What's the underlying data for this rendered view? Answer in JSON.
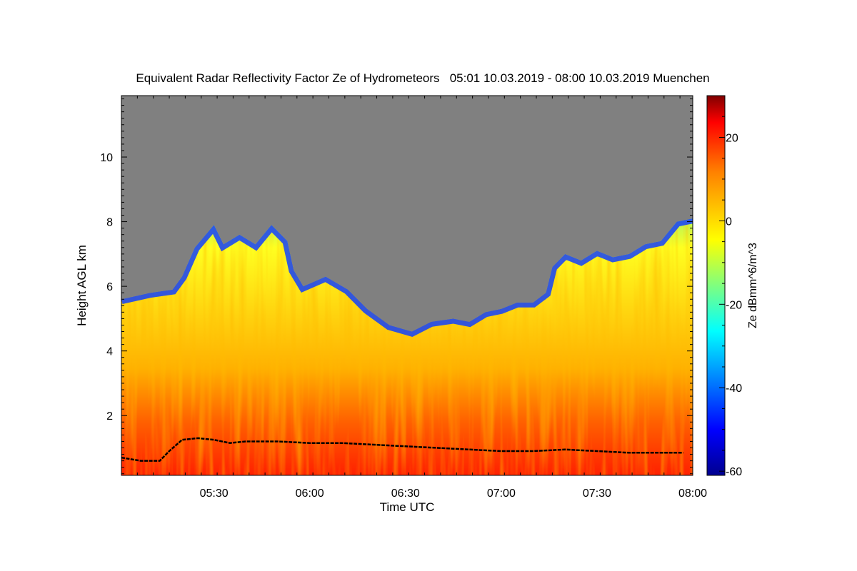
{
  "chart_data": {
    "type": "heatmap",
    "title": "Equivalent Radar Reflectivity Factor Ze of Hydrometeors   05:01 10.03.2019 - 08:00 10.03.2019 Muenchen",
    "xlabel": "Time UTC",
    "ylabel": "Height AGL km",
    "x_range": [
      "05:01",
      "08:00"
    ],
    "x_ticks": [
      "05:30",
      "06:00",
      "06:30",
      "07:00",
      "07:30",
      "08:00"
    ],
    "y_range": [
      0.15,
      11.9
    ],
    "y_ticks": [
      2,
      4,
      6,
      8,
      10
    ],
    "colorbar": {
      "label": "Ze dBmm^6/m^3",
      "range": [
        -61,
        30
      ],
      "ticks": [
        20,
        0,
        -20,
        -40,
        -60
      ],
      "colormap": [
        "#00008f",
        "#0000ff",
        "#00ffff",
        "#ffff00",
        "#ff8000",
        "#ff0000",
        "#800000"
      ]
    },
    "no_signal_color": "#808080",
    "echo_top_km": [
      {
        "t": "05:01",
        "h": 5.6
      },
      {
        "t": "05:10",
        "h": 5.8
      },
      {
        "t": "05:17",
        "h": 5.9
      },
      {
        "t": "05:20",
        "h": 6.3
      },
      {
        "t": "05:24",
        "h": 7.2
      },
      {
        "t": "05:30",
        "h": 7.9
      },
      {
        "t": "05:33",
        "h": 7.3
      },
      {
        "t": "05:38",
        "h": 7.6
      },
      {
        "t": "05:43",
        "h": 7.3
      },
      {
        "t": "05:48",
        "h": 7.9
      },
      {
        "t": "05:53",
        "h": 7.4
      },
      {
        "t": "05:55",
        "h": 6.5
      },
      {
        "t": "05:58",
        "h": 6.0
      },
      {
        "t": "06:05",
        "h": 6.3
      },
      {
        "t": "06:12",
        "h": 5.9
      },
      {
        "t": "06:18",
        "h": 5.3
      },
      {
        "t": "06:25",
        "h": 4.8
      },
      {
        "t": "06:32",
        "h": 4.6
      },
      {
        "t": "06:38",
        "h": 4.9
      },
      {
        "t": "06:45",
        "h": 5.0
      },
      {
        "t": "06:50",
        "h": 4.9
      },
      {
        "t": "06:55",
        "h": 5.2
      },
      {
        "t": "07:00",
        "h": 5.3
      },
      {
        "t": "07:05",
        "h": 5.5
      },
      {
        "t": "07:10",
        "h": 5.5
      },
      {
        "t": "07:14",
        "h": 5.8
      },
      {
        "t": "07:16",
        "h": 6.6
      },
      {
        "t": "07:20",
        "h": 7.0
      },
      {
        "t": "07:25",
        "h": 6.8
      },
      {
        "t": "07:30",
        "h": 7.1
      },
      {
        "t": "07:35",
        "h": 6.9
      },
      {
        "t": "07:40",
        "h": 7.0
      },
      {
        "t": "07:45",
        "h": 7.3
      },
      {
        "t": "07:50",
        "h": 7.4
      },
      {
        "t": "07:55",
        "h": 8.0
      },
      {
        "t": "08:00",
        "h": 8.1
      }
    ],
    "cloud_base_km": [
      {
        "t": "05:01",
        "h": 0.7
      },
      {
        "t": "05:07",
        "h": 0.6
      },
      {
        "t": "05:13",
        "h": 0.6
      },
      {
        "t": "05:16",
        "h": 0.9
      },
      {
        "t": "05:20",
        "h": 1.25
      },
      {
        "t": "05:25",
        "h": 1.3
      },
      {
        "t": "05:30",
        "h": 1.25
      },
      {
        "t": "05:35",
        "h": 1.15
      },
      {
        "t": "05:40",
        "h": 1.2
      },
      {
        "t": "05:50",
        "h": 1.2
      },
      {
        "t": "06:00",
        "h": 1.15
      },
      {
        "t": "06:10",
        "h": 1.15
      },
      {
        "t": "06:20",
        "h": 1.1
      },
      {
        "t": "06:30",
        "h": 1.05
      },
      {
        "t": "06:40",
        "h": 1.0
      },
      {
        "t": "06:50",
        "h": 0.95
      },
      {
        "t": "07:00",
        "h": 0.9
      },
      {
        "t": "07:10",
        "h": 0.9
      },
      {
        "t": "07:20",
        "h": 0.95
      },
      {
        "t": "07:30",
        "h": 0.9
      },
      {
        "t": "07:40",
        "h": 0.85
      },
      {
        "t": "07:50",
        "h": 0.85
      },
      {
        "t": "07:57",
        "h": 0.85
      }
    ]
  }
}
